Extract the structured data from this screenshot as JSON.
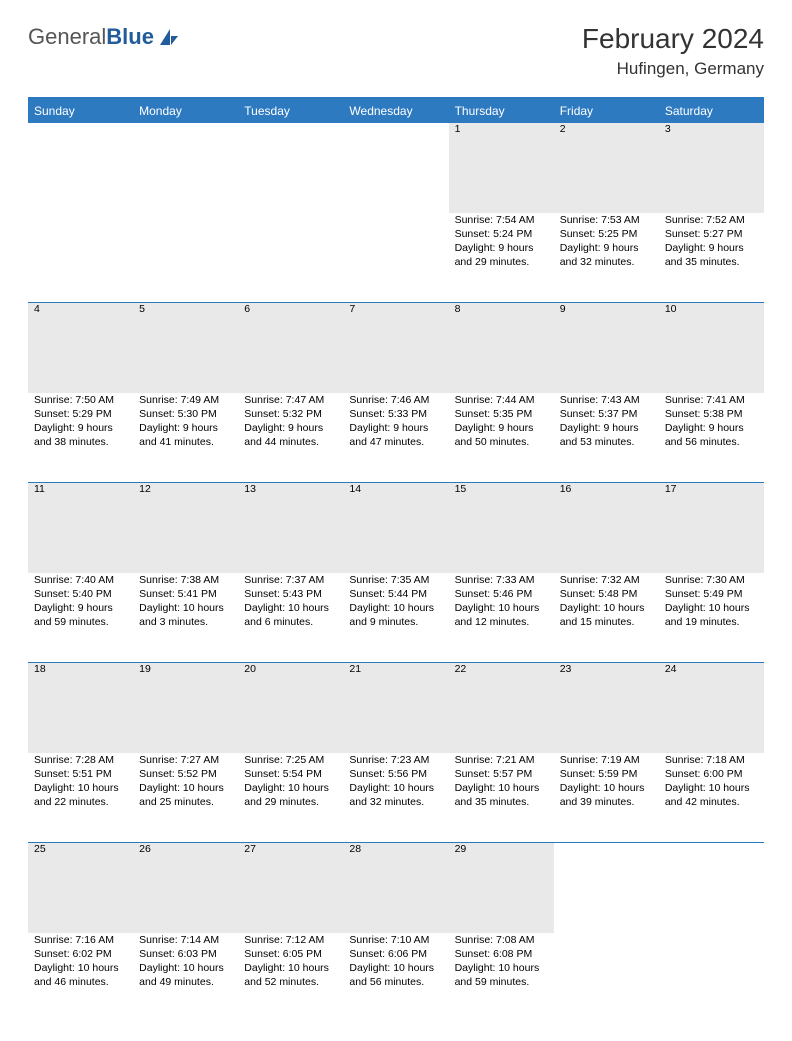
{
  "logo": {
    "text_a": "General",
    "text_b": "Blue",
    "color_a": "#555555",
    "color_b": "#225c9a",
    "icon_color": "#225c9a"
  },
  "title": {
    "month": "February 2024",
    "location": "Hufingen, Germany"
  },
  "colors": {
    "header_bg": "#2e7ac1",
    "header_fg": "#ffffff",
    "divider": "#2b7ac0",
    "daynum_bg": "#e9e9e9",
    "text": "#000000"
  },
  "calendar": {
    "columns": [
      "Sunday",
      "Monday",
      "Tuesday",
      "Wednesday",
      "Thursday",
      "Friday",
      "Saturday"
    ],
    "weeks": [
      [
        null,
        null,
        null,
        null,
        {
          "n": "1",
          "sunrise": "Sunrise: 7:54 AM",
          "sunset": "Sunset: 5:24 PM",
          "day1": "Daylight: 9 hours",
          "day2": "and 29 minutes."
        },
        {
          "n": "2",
          "sunrise": "Sunrise: 7:53 AM",
          "sunset": "Sunset: 5:25 PM",
          "day1": "Daylight: 9 hours",
          "day2": "and 32 minutes."
        },
        {
          "n": "3",
          "sunrise": "Sunrise: 7:52 AM",
          "sunset": "Sunset: 5:27 PM",
          "day1": "Daylight: 9 hours",
          "day2": "and 35 minutes."
        }
      ],
      [
        {
          "n": "4",
          "sunrise": "Sunrise: 7:50 AM",
          "sunset": "Sunset: 5:29 PM",
          "day1": "Daylight: 9 hours",
          "day2": "and 38 minutes."
        },
        {
          "n": "5",
          "sunrise": "Sunrise: 7:49 AM",
          "sunset": "Sunset: 5:30 PM",
          "day1": "Daylight: 9 hours",
          "day2": "and 41 minutes."
        },
        {
          "n": "6",
          "sunrise": "Sunrise: 7:47 AM",
          "sunset": "Sunset: 5:32 PM",
          "day1": "Daylight: 9 hours",
          "day2": "and 44 minutes."
        },
        {
          "n": "7",
          "sunrise": "Sunrise: 7:46 AM",
          "sunset": "Sunset: 5:33 PM",
          "day1": "Daylight: 9 hours",
          "day2": "and 47 minutes."
        },
        {
          "n": "8",
          "sunrise": "Sunrise: 7:44 AM",
          "sunset": "Sunset: 5:35 PM",
          "day1": "Daylight: 9 hours",
          "day2": "and 50 minutes."
        },
        {
          "n": "9",
          "sunrise": "Sunrise: 7:43 AM",
          "sunset": "Sunset: 5:37 PM",
          "day1": "Daylight: 9 hours",
          "day2": "and 53 minutes."
        },
        {
          "n": "10",
          "sunrise": "Sunrise: 7:41 AM",
          "sunset": "Sunset: 5:38 PM",
          "day1": "Daylight: 9 hours",
          "day2": "and 56 minutes."
        }
      ],
      [
        {
          "n": "11",
          "sunrise": "Sunrise: 7:40 AM",
          "sunset": "Sunset: 5:40 PM",
          "day1": "Daylight: 9 hours",
          "day2": "and 59 minutes."
        },
        {
          "n": "12",
          "sunrise": "Sunrise: 7:38 AM",
          "sunset": "Sunset: 5:41 PM",
          "day1": "Daylight: 10 hours",
          "day2": "and 3 minutes."
        },
        {
          "n": "13",
          "sunrise": "Sunrise: 7:37 AM",
          "sunset": "Sunset: 5:43 PM",
          "day1": "Daylight: 10 hours",
          "day2": "and 6 minutes."
        },
        {
          "n": "14",
          "sunrise": "Sunrise: 7:35 AM",
          "sunset": "Sunset: 5:44 PM",
          "day1": "Daylight: 10 hours",
          "day2": "and 9 minutes."
        },
        {
          "n": "15",
          "sunrise": "Sunrise: 7:33 AM",
          "sunset": "Sunset: 5:46 PM",
          "day1": "Daylight: 10 hours",
          "day2": "and 12 minutes."
        },
        {
          "n": "16",
          "sunrise": "Sunrise: 7:32 AM",
          "sunset": "Sunset: 5:48 PM",
          "day1": "Daylight: 10 hours",
          "day2": "and 15 minutes."
        },
        {
          "n": "17",
          "sunrise": "Sunrise: 7:30 AM",
          "sunset": "Sunset: 5:49 PM",
          "day1": "Daylight: 10 hours",
          "day2": "and 19 minutes."
        }
      ],
      [
        {
          "n": "18",
          "sunrise": "Sunrise: 7:28 AM",
          "sunset": "Sunset: 5:51 PM",
          "day1": "Daylight: 10 hours",
          "day2": "and 22 minutes."
        },
        {
          "n": "19",
          "sunrise": "Sunrise: 7:27 AM",
          "sunset": "Sunset: 5:52 PM",
          "day1": "Daylight: 10 hours",
          "day2": "and 25 minutes."
        },
        {
          "n": "20",
          "sunrise": "Sunrise: 7:25 AM",
          "sunset": "Sunset: 5:54 PM",
          "day1": "Daylight: 10 hours",
          "day2": "and 29 minutes."
        },
        {
          "n": "21",
          "sunrise": "Sunrise: 7:23 AM",
          "sunset": "Sunset: 5:56 PM",
          "day1": "Daylight: 10 hours",
          "day2": "and 32 minutes."
        },
        {
          "n": "22",
          "sunrise": "Sunrise: 7:21 AM",
          "sunset": "Sunset: 5:57 PM",
          "day1": "Daylight: 10 hours",
          "day2": "and 35 minutes."
        },
        {
          "n": "23",
          "sunrise": "Sunrise: 7:19 AM",
          "sunset": "Sunset: 5:59 PM",
          "day1": "Daylight: 10 hours",
          "day2": "and 39 minutes."
        },
        {
          "n": "24",
          "sunrise": "Sunrise: 7:18 AM",
          "sunset": "Sunset: 6:00 PM",
          "day1": "Daylight: 10 hours",
          "day2": "and 42 minutes."
        }
      ],
      [
        {
          "n": "25",
          "sunrise": "Sunrise: 7:16 AM",
          "sunset": "Sunset: 6:02 PM",
          "day1": "Daylight: 10 hours",
          "day2": "and 46 minutes."
        },
        {
          "n": "26",
          "sunrise": "Sunrise: 7:14 AM",
          "sunset": "Sunset: 6:03 PM",
          "day1": "Daylight: 10 hours",
          "day2": "and 49 minutes."
        },
        {
          "n": "27",
          "sunrise": "Sunrise: 7:12 AM",
          "sunset": "Sunset: 6:05 PM",
          "day1": "Daylight: 10 hours",
          "day2": "and 52 minutes."
        },
        {
          "n": "28",
          "sunrise": "Sunrise: 7:10 AM",
          "sunset": "Sunset: 6:06 PM",
          "day1": "Daylight: 10 hours",
          "day2": "and 56 minutes."
        },
        {
          "n": "29",
          "sunrise": "Sunrise: 7:08 AM",
          "sunset": "Sunset: 6:08 PM",
          "day1": "Daylight: 10 hours",
          "day2": "and 59 minutes."
        },
        null,
        null
      ]
    ]
  }
}
